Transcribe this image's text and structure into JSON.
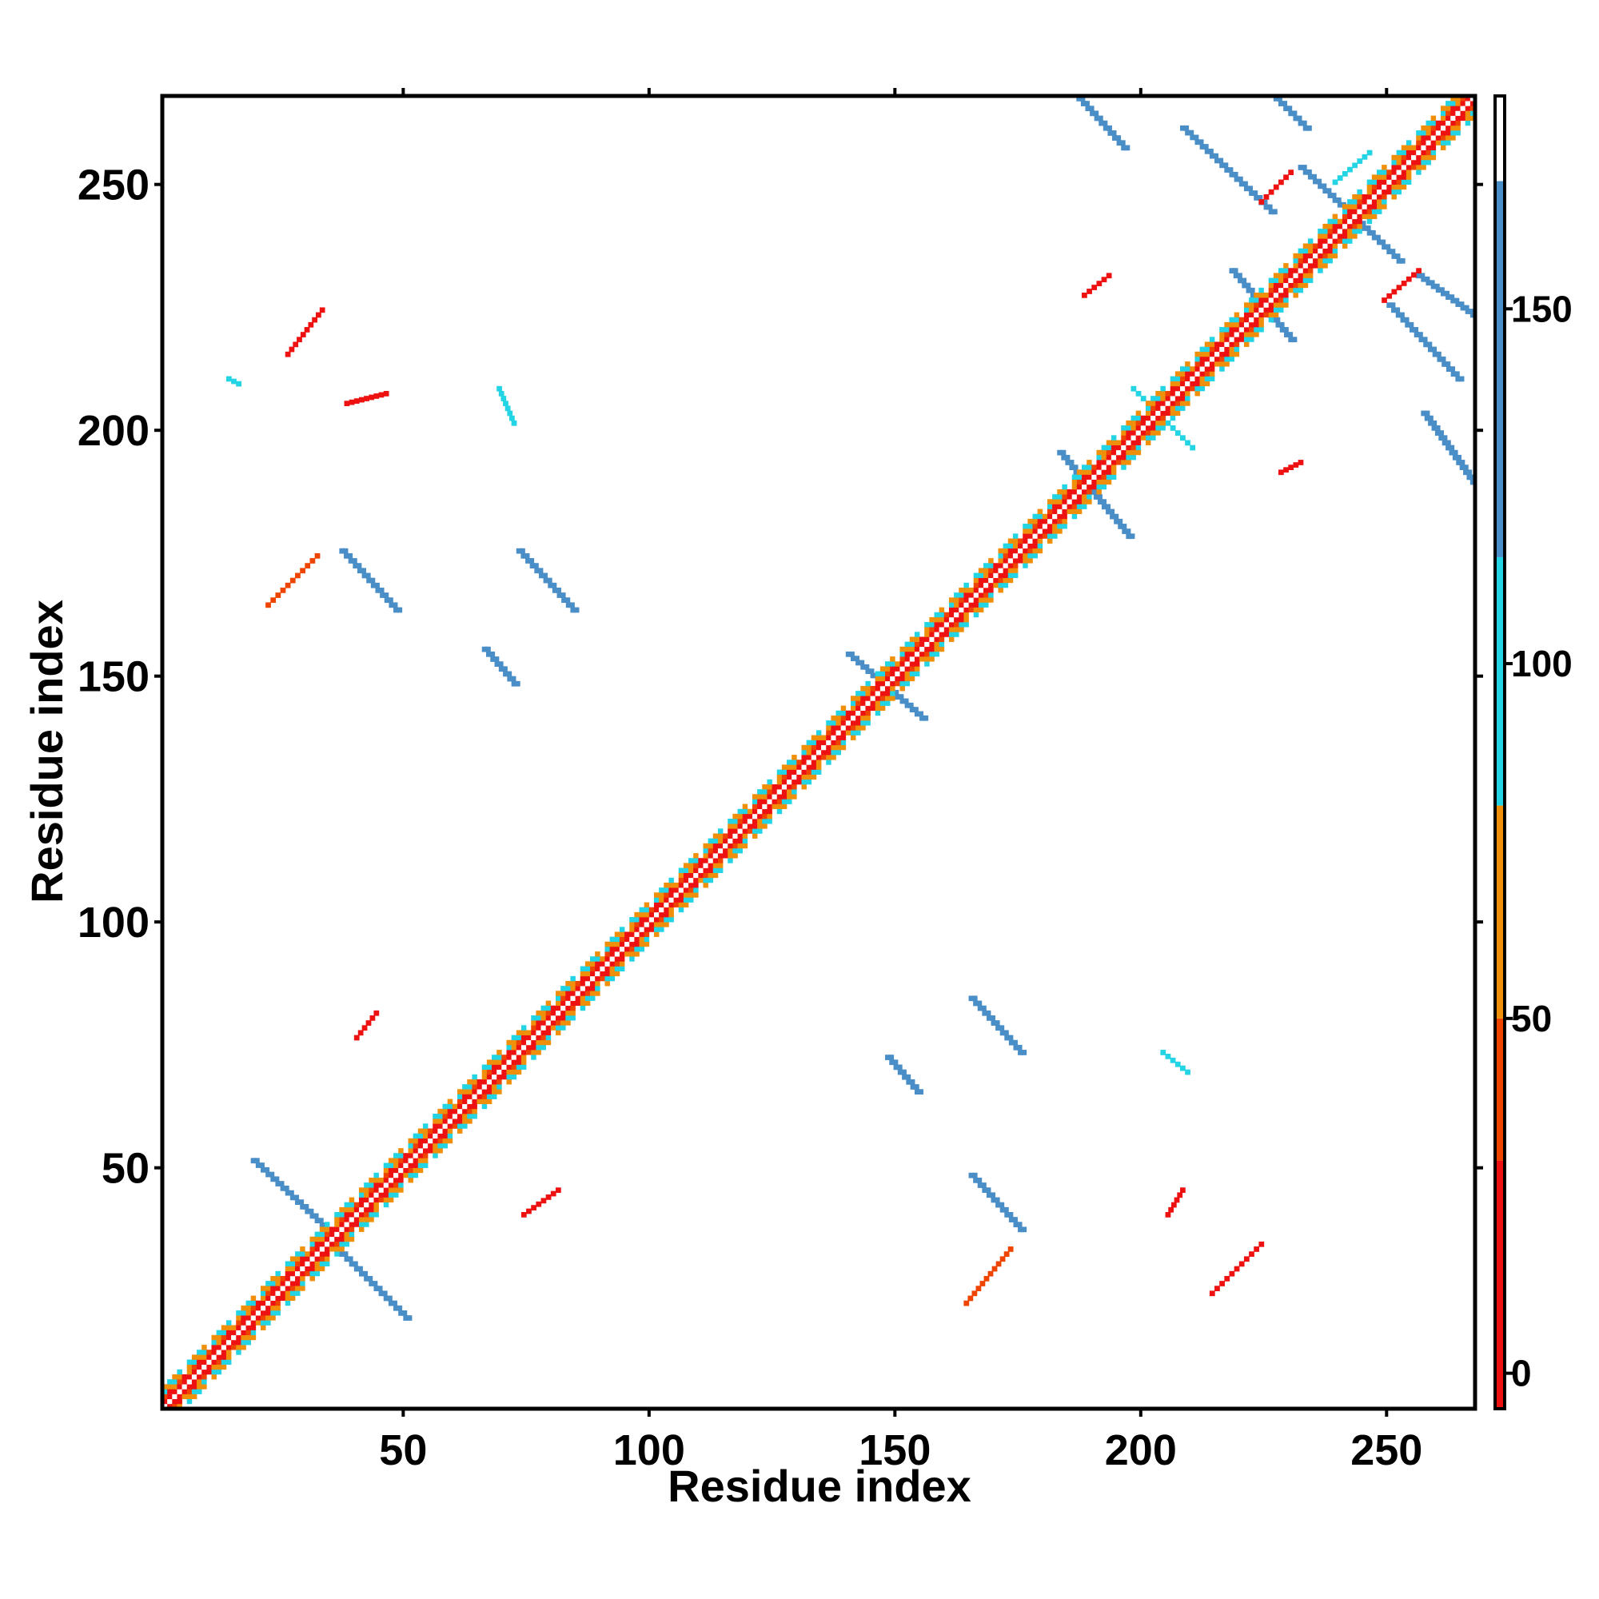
{
  "chart_data": {
    "type": "heatmap",
    "title": "",
    "xlabel": "Residue index",
    "ylabel": "Residue index",
    "xlim": [
      1,
      268
    ],
    "ylim": [
      1,
      268
    ],
    "xticks": [
      50,
      100,
      150,
      200,
      250
    ],
    "yticks": [
      50,
      100,
      150,
      200,
      250
    ],
    "grid": false,
    "colorbar": {
      "range": [
        -5,
        180
      ],
      "ticks": [
        0,
        50,
        100,
        150
      ],
      "segments": [
        {
          "from": -5,
          "to": 30,
          "color": "#ee1111"
        },
        {
          "from": 30,
          "to": 50,
          "color": "#ee4400"
        },
        {
          "from": 50,
          "to": 80,
          "color": "#f0900a"
        },
        {
          "from": 80,
          "to": 115,
          "color": "#22d4e4"
        },
        {
          "from": 115,
          "to": 168,
          "color": "#4a8ec8"
        },
        {
          "from": 168,
          "to": 180,
          "color": "#ffffff"
        }
      ]
    },
    "diagonal": {
      "from": 1,
      "to": 268
    },
    "patches": [
      {
        "x": [
          19,
          35
        ],
        "y": [
          51,
          36
        ],
        "value": 150
      },
      {
        "x": [
          35,
          50
        ],
        "y": [
          34,
          19
        ],
        "value": 150
      },
      {
        "x": [
          37,
          48
        ],
        "y": [
          175,
          163
        ],
        "value": 150
      },
      {
        "x": [
          73,
          84
        ],
        "y": [
          175,
          163
        ],
        "value": 150
      },
      {
        "x": [
          66,
          72
        ],
        "y": [
          155,
          148
        ],
        "value": 150
      },
      {
        "x": [
          69,
          72
        ],
        "y": [
          208,
          201
        ],
        "value": 110
      },
      {
        "x": [
          26,
          33
        ],
        "y": [
          215,
          224
        ],
        "value": 5
      },
      {
        "x": [
          14,
          16
        ],
        "y": [
          210,
          209
        ],
        "value": 110
      },
      {
        "x": [
          22,
          32
        ],
        "y": [
          164,
          174
        ],
        "value": 40
      },
      {
        "x": [
          165,
          175
        ],
        "y": [
          84,
          73
        ],
        "value": 150
      },
      {
        "x": [
          148,
          154
        ],
        "y": [
          72,
          65
        ],
        "value": 150
      },
      {
        "x": [
          165,
          175
        ],
        "y": [
          48,
          37
        ],
        "value": 150
      },
      {
        "x": [
          214,
          224
        ],
        "y": [
          24,
          34
        ],
        "value": 5
      },
      {
        "x": [
          164,
          173
        ],
        "y": [
          22,
          33
        ],
        "value": 40
      },
      {
        "x": [
          204,
          209
        ],
        "y": [
          73,
          69
        ],
        "value": 110
      },
      {
        "x": [
          183,
          197
        ],
        "y": [
          195,
          178
        ],
        "value": 150
      },
      {
        "x": [
          140,
          155
        ],
        "y": [
          154,
          141
        ],
        "value": 150
      },
      {
        "x": [
          198,
          210
        ],
        "y": [
          208,
          196
        ],
        "value": 110
      },
      {
        "x": [
          186,
          196
        ],
        "y": [
          268,
          257
        ],
        "value": 150
      },
      {
        "x": [
          208,
          226
        ],
        "y": [
          261,
          244
        ],
        "value": 150
      },
      {
        "x": [
          226,
          233
        ],
        "y": [
          268,
          261
        ],
        "value": 150
      },
      {
        "x": [
          232,
          252
        ],
        "y": [
          253,
          234
        ],
        "value": 150
      },
      {
        "x": [
          218,
          230
        ],
        "y": [
          232,
          218
        ],
        "value": 150
      },
      {
        "x": [
          250,
          264
        ],
        "y": [
          225,
          210
        ],
        "value": 150
      },
      {
        "x": [
          256,
          267
        ],
        "y": [
          231,
          223
        ],
        "value": 150
      },
      {
        "x": [
          257,
          267
        ],
        "y": [
          203,
          189
        ],
        "value": 150
      },
      {
        "x": [
          224,
          230
        ],
        "y": [
          246,
          252
        ],
        "value": 5
      },
      {
        "x": [
          249,
          256
        ],
        "y": [
          226,
          232
        ],
        "value": 5
      },
      {
        "x": [
          239,
          246
        ],
        "y": [
          250,
          256
        ],
        "value": 110
      },
      {
        "x": [
          40,
          44
        ],
        "y": [
          76,
          81
        ],
        "value": 20
      },
      {
        "x": [
          74,
          81
        ],
        "y": [
          40,
          45
        ],
        "value": 20
      },
      {
        "x": [
          38,
          46
        ],
        "y": [
          205,
          207
        ],
        "value": 25
      },
      {
        "x": [
          188,
          193
        ],
        "y": [
          227,
          231
        ],
        "value": 20
      },
      {
        "x": [
          205,
          208
        ],
        "y": [
          40,
          45
        ],
        "value": 20
      },
      {
        "x": [
          228,
          232
        ],
        "y": [
          191,
          193
        ],
        "value": 20
      }
    ]
  }
}
